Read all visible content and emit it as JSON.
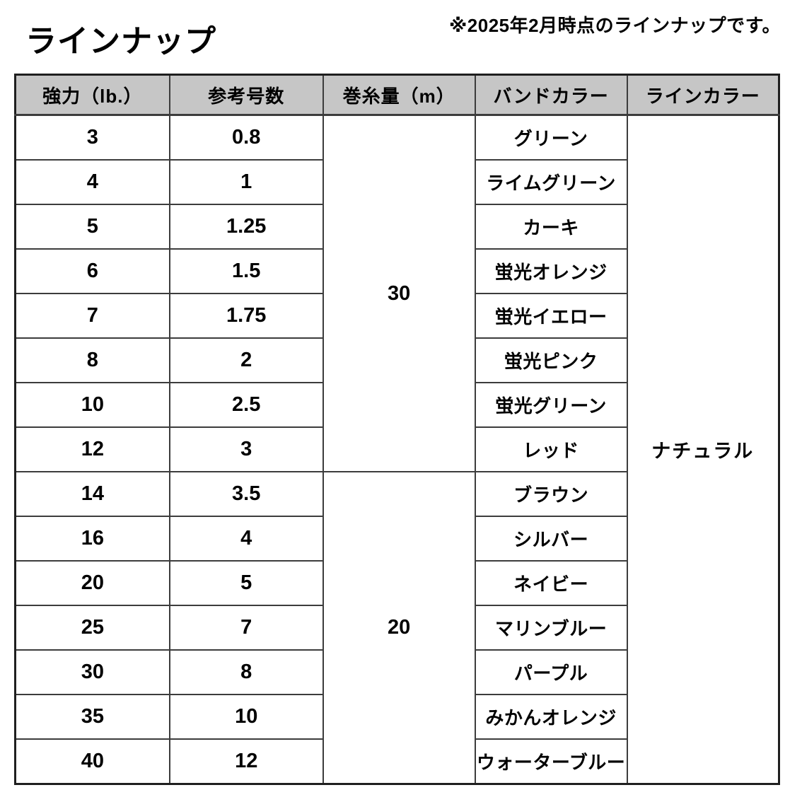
{
  "title": "ラインナップ",
  "note": "※2025年2月時点のラインナップです。",
  "table": {
    "headers": [
      {
        "key": "strength",
        "label": "強力（lb.）"
      },
      {
        "key": "size",
        "label": "参考号数"
      },
      {
        "key": "length",
        "label": "巻糸量（m）"
      },
      {
        "key": "band_color",
        "label": "バンドカラー"
      },
      {
        "key": "line_color",
        "label": "ラインカラー"
      }
    ],
    "line_color": "ナチュラル",
    "groups": [
      {
        "length_m": "30",
        "rows": [
          {
            "strength": "3",
            "size": "0.8",
            "band_color": "グリーン"
          },
          {
            "strength": "4",
            "size": "1",
            "band_color": "ライムグリーン"
          },
          {
            "strength": "5",
            "size": "1.25",
            "band_color": "カーキ"
          },
          {
            "strength": "6",
            "size": "1.5",
            "band_color": "蛍光オレンジ"
          },
          {
            "strength": "7",
            "size": "1.75",
            "band_color": "蛍光イエロー"
          },
          {
            "strength": "8",
            "size": "2",
            "band_color": "蛍光ピンク"
          },
          {
            "strength": "10",
            "size": "2.5",
            "band_color": "蛍光グリーン"
          },
          {
            "strength": "12",
            "size": "3",
            "band_color": "レッド"
          }
        ]
      },
      {
        "length_m": "20",
        "rows": [
          {
            "strength": "14",
            "size": "3.5",
            "band_color": "ブラウン"
          },
          {
            "strength": "16",
            "size": "4",
            "band_color": "シルバー"
          },
          {
            "strength": "20",
            "size": "5",
            "band_color": "ネイビー"
          },
          {
            "strength": "25",
            "size": "7",
            "band_color": "マリンブルー"
          },
          {
            "strength": "30",
            "size": "8",
            "band_color": "パープル"
          },
          {
            "strength": "35",
            "size": "10",
            "band_color": "みかんオレンジ"
          },
          {
            "strength": "40",
            "size": "12",
            "band_color": "ウォーターブルー"
          }
        ]
      }
    ],
    "colors": {
      "background": "#ffffff",
      "text": "#000000",
      "header_bg": "#c6c6c6",
      "border": "#3c3c3c",
      "outer_border": "#1f1f1f"
    }
  }
}
